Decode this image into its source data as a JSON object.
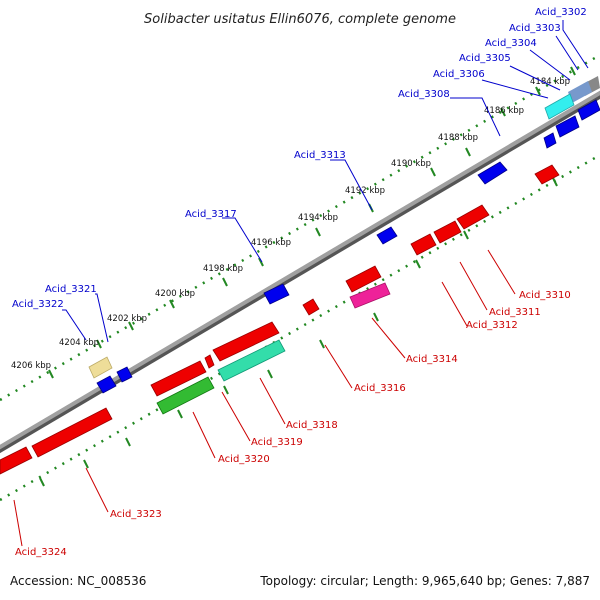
{
  "title": "Solibacter usitatus Ellin6076, complete genome",
  "footer": {
    "accession": "Accession: NC_008536",
    "summary": "Topology: circular; Length: 9,965,640 bp; Genes: 7,887"
  },
  "ticks": [
    "4184 kbp",
    "4186 kbp",
    "4188 kbp",
    "4190 kbp",
    "4192 kbp",
    "4194 kbp",
    "4196 kbp",
    "4198 kbp",
    "4200 kbp",
    "4202 kbp",
    "4204 kbp",
    "4206 kbp"
  ],
  "labels": {
    "acid_3302": "Acid_3302",
    "acid_3303": "Acid_3303",
    "acid_3304": "Acid_3304",
    "acid_3305": "Acid_3305",
    "acid_3306": "Acid_3306",
    "acid_3308": "Acid_3308",
    "acid_3313": "Acid_3313",
    "acid_3317": "Acid_3317",
    "acid_3321": "Acid_3321",
    "acid_3322": "Acid_3322",
    "acid_3310": "Acid_3310",
    "acid_3311": "Acid_3311",
    "acid_3312": "Acid_3312",
    "acid_3314": "Acid_3314",
    "acid_3316": "Acid_3316",
    "acid_3318": "Acid_3318",
    "acid_3319": "Acid_3319",
    "acid_3320": "Acid_3320",
    "acid_3323": "Acid_3323",
    "acid_3324": "Acid_3324"
  },
  "colors": {
    "backbone": "#888888",
    "forward_gene": "#0000ee",
    "reverse_gene": "#ee0000",
    "cyan_gene": "#33eeee",
    "green_gene": "#33bb33",
    "teal_gene": "#33ddaa",
    "magenta_gene": "#ee2299",
    "yellow_gene": "#eedd99",
    "tick_green": "#228822",
    "blue_label": "#0000cc",
    "red_label": "#cc0000"
  }
}
